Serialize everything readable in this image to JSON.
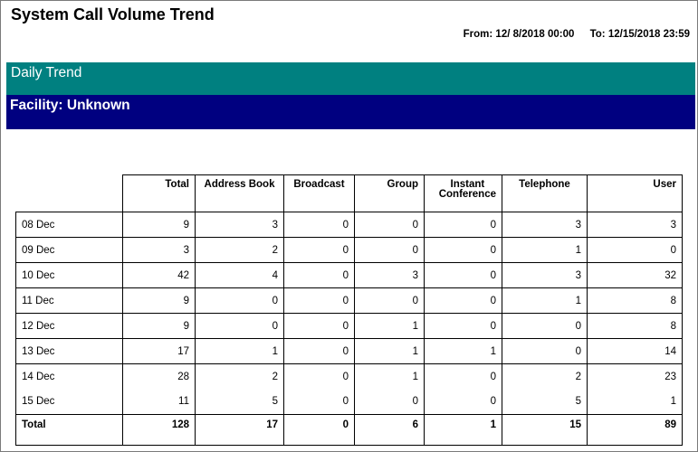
{
  "report": {
    "title": "System Call Volume Trend",
    "from_label": "From: 12/ 8/2018 00:00",
    "to_label": "To: 12/15/2018 23:59"
  },
  "section": {
    "band_title": "Daily Trend",
    "facility": "Facility: Unknown"
  },
  "table": {
    "headers": [
      "Total",
      "Address Book",
      "Broadcast",
      "Group",
      "Instant\nConference",
      "Telephone",
      "User"
    ],
    "rows": [
      {
        "label": "08 Dec",
        "values": [
          "9",
          "3",
          "0",
          "0",
          "0",
          "3",
          "3"
        ]
      },
      {
        "label": "09 Dec",
        "values": [
          "3",
          "2",
          "0",
          "0",
          "0",
          "1",
          "0"
        ]
      },
      {
        "label": "10 Dec",
        "values": [
          "42",
          "4",
          "0",
          "3",
          "0",
          "3",
          "32"
        ]
      },
      {
        "label": "11 Dec",
        "values": [
          "9",
          "0",
          "0",
          "0",
          "0",
          "1",
          "8"
        ]
      },
      {
        "label": "12 Dec",
        "values": [
          "9",
          "0",
          "0",
          "1",
          "0",
          "0",
          "8"
        ]
      },
      {
        "label": "13 Dec",
        "values": [
          "17",
          "1",
          "0",
          "1",
          "1",
          "0",
          "14"
        ]
      },
      {
        "label": "14 Dec",
        "values": [
          "28",
          "2",
          "0",
          "1",
          "0",
          "2",
          "23"
        ]
      },
      {
        "label": "15 Dec",
        "values": [
          "11",
          "5",
          "0",
          "0",
          "0",
          "5",
          "1"
        ]
      }
    ],
    "total": {
      "label": "Total",
      "values": [
        "128",
        "17",
        "0",
        "6",
        "1",
        "15",
        "89"
      ]
    }
  }
}
